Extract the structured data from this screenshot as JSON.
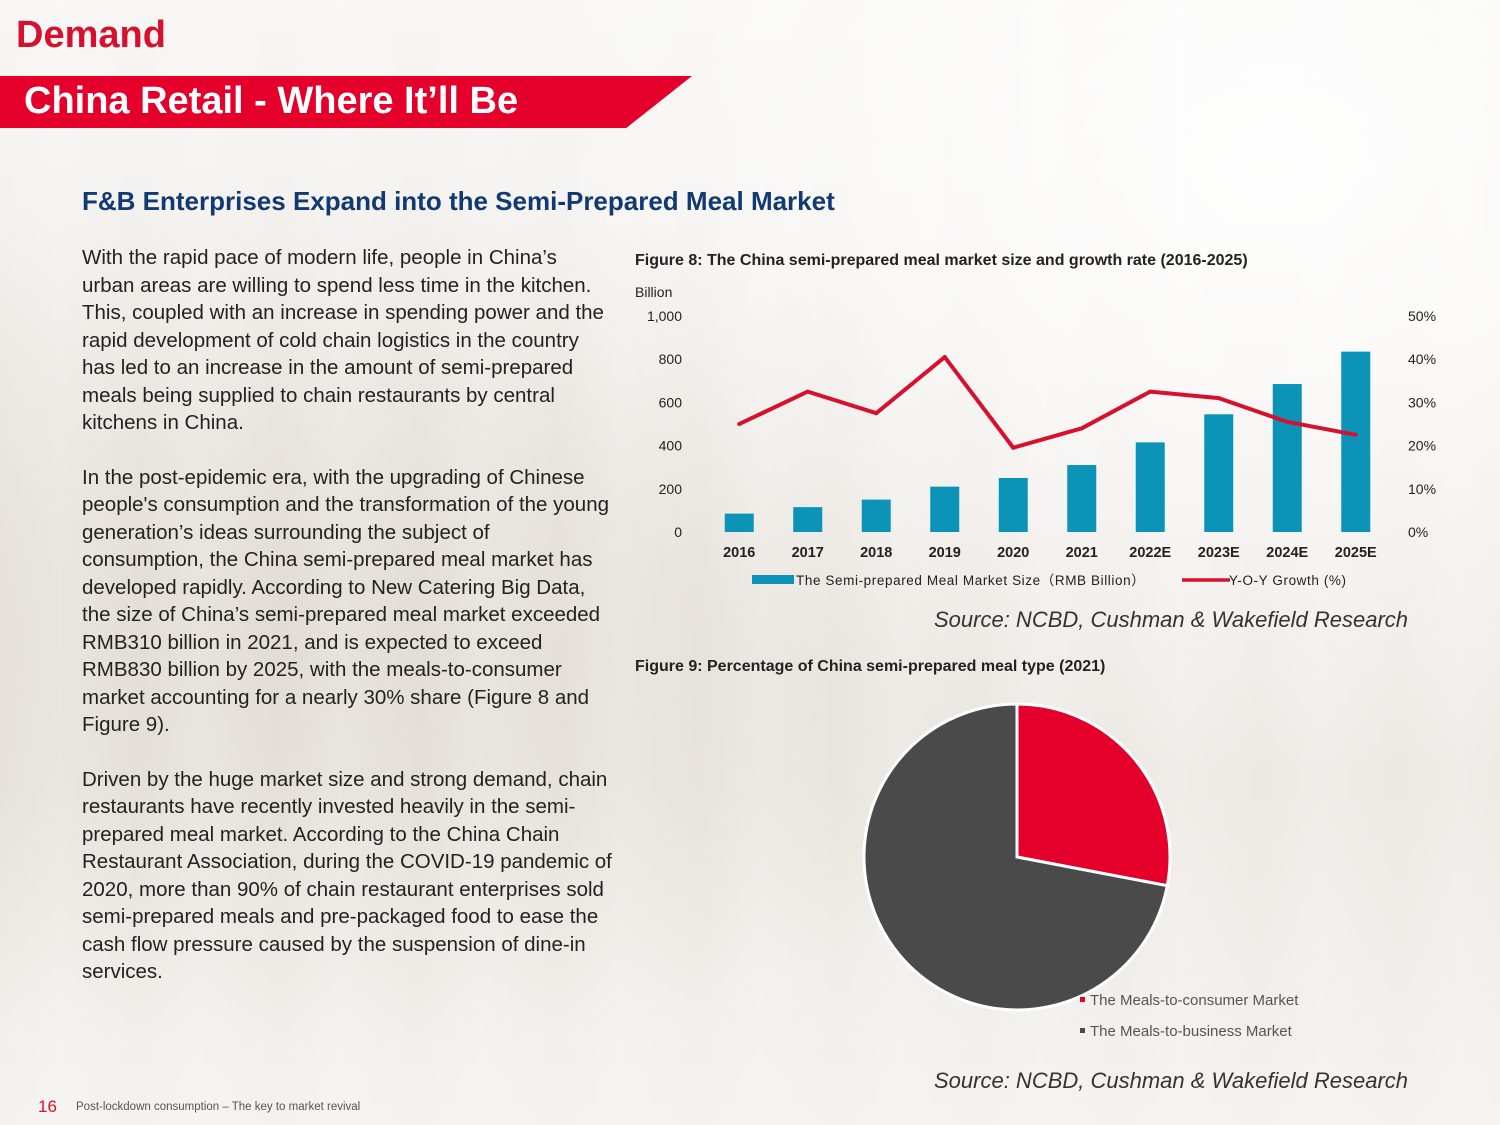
{
  "section_label": "Demand",
  "page_title": "China Retail - Where It’ll Be",
  "heading": "F&B Enterprises Expand into the Semi-Prepared Meal Market",
  "paragraphs": [
    "With the rapid pace of modern life, people in China’s urban areas are willing to spend less time in the kitchen. This, coupled with an increase in spending power and the rapid development of cold chain logistics in the country has led to an increase in the amount of semi-prepared meals being supplied to chain restaurants by central kitchens in China.",
    "In the post-epidemic era, with the upgrading of Chinese people's consumption and the transformation of the young generation’s ideas surrounding the subject of consumption, the China semi-prepared meal market has developed rapidly. According to New Catering Big Data, the size of China’s semi-prepared meal market exceeded RMB310 billion in 2021, and is expected to exceed RMB830 billion by 2025, with the meals-to-consumer market accounting for a nearly 30% share (Figure 8 and Figure 9).",
    "Driven by the huge market size and strong demand, chain restaurants have recently invested heavily in the semi-prepared meal market. According to the China Chain Restaurant Association, during the COVID-19 pandemic of 2020, more than 90% of chain restaurant enterprises sold semi-prepared meals and pre-packaged food to ease the cash flow pressure caused by the suspension of dine-in services."
  ],
  "figure8": {
    "title": "Figure 8: The China semi-prepared meal market size and growth rate (2016-2025)",
    "source": "Source: NCBD, Cushman & Wakefield Research"
  },
  "figure9": {
    "title": "Figure 9: Percentage of China semi-prepared meal type (2021)",
    "source": "Source: NCBD, Cushman & Wakefield Research"
  },
  "footer": {
    "page_number": "16",
    "text": "Post-lockdown consumption – The key to market revival"
  },
  "colors": {
    "accent_red": "#e4002b",
    "bar_teal": "#0b94b8",
    "line_red": "#d7102e",
    "pie_dark": "#4a4a4a",
    "heading_navy": "#123a72"
  },
  "chart_data": [
    {
      "type": "bar",
      "secondary_type": "line",
      "categories": [
        "2016",
        "2017",
        "2018",
        "2019",
        "2020",
        "2021",
        "2022E",
        "2023E",
        "2024E",
        "2025E"
      ],
      "series": [
        {
          "name": "The Semi-prepared Meal Market Size（RMB Billion）",
          "type": "bar",
          "axis": "left",
          "values": [
            85,
            115,
            150,
            210,
            250,
            310,
            415,
            545,
            685,
            835
          ]
        },
        {
          "name": "Y-O-Y Growth (%)",
          "type": "line",
          "axis": "right",
          "values": [
            25,
            32.5,
            27.5,
            40.5,
            19.5,
            24,
            32.5,
            31,
            25.5,
            22.5
          ]
        }
      ],
      "ylabel": "Billion",
      "ylim": [
        0,
        1000
      ],
      "y_ticks": [
        "0",
        "200",
        "400",
        "600",
        "800",
        "1,000"
      ],
      "y2lim": [
        0,
        50
      ],
      "y2_ticks": [
        "0%",
        "10%",
        "20%",
        "30%",
        "40%",
        "50%"
      ],
      "legend_position": "bottom"
    },
    {
      "type": "pie",
      "labels": [
        "The Meals-to-consumer Market",
        "The Meals-to-business Market"
      ],
      "values": [
        28,
        72
      ],
      "colors": [
        "#e4002b",
        "#4a4a4a"
      ],
      "legend_position": "bottom-right"
    }
  ]
}
